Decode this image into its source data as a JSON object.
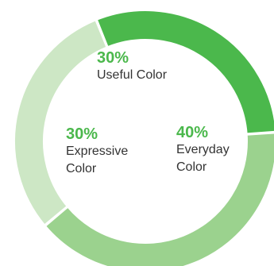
{
  "chart_data": {
    "type": "pie",
    "title": "",
    "categories": [
      "Useful Color",
      "Everyday Color",
      "Expressive Color"
    ],
    "values": [
      30,
      40,
      30
    ],
    "unit": "%",
    "colors": [
      "#4bb84c",
      "#9bd28e",
      "#cde7c5"
    ],
    "label_color": "#4bb84c",
    "segments": [
      {
        "pct": "30%",
        "name": "Useful Color"
      },
      {
        "pct": "40%",
        "name": "Everyday\nColor"
      },
      {
        "pct": "30%",
        "name": "Expressive\nColor"
      }
    ]
  }
}
